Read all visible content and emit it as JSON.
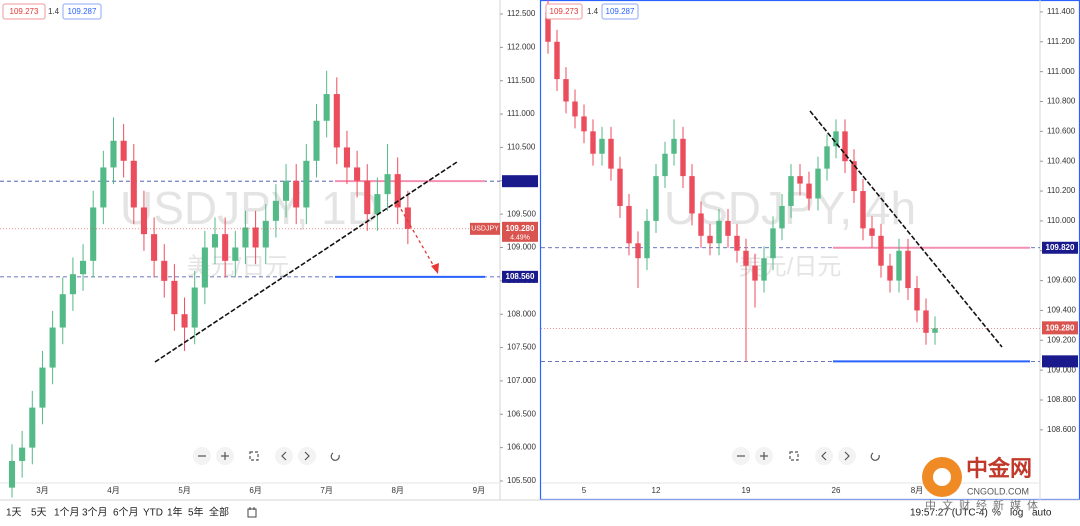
{
  "chart_data": [
    {
      "type": "candlestick",
      "title": "USDJPY, 1D",
      "subtitle": "美元/日元",
      "bid": "109.273",
      "spread": "1.4",
      "ask": "109.287",
      "categories": [
        null,
        null,
        null,
        "3月",
        null,
        null,
        null,
        null,
        null,
        null,
        "4月",
        null,
        null,
        null,
        null,
        null,
        null,
        "5月",
        null,
        null,
        null,
        null,
        null,
        null,
        "6月",
        null,
        null,
        null,
        null,
        null,
        null,
        "7月",
        null,
        null,
        null,
        null,
        null,
        null,
        "8月",
        null,
        null,
        null,
        null,
        null,
        null,
        null,
        "9月"
      ],
      "open": [
        105.4,
        105.8,
        106.0,
        106.6,
        107.2,
        107.8,
        108.3,
        108.6,
        108.8,
        109.6,
        110.2,
        110.6,
        110.3,
        109.6,
        109.2,
        108.8,
        108.5,
        108.0,
        107.8,
        108.4,
        109.0,
        109.2,
        108.8,
        109.0,
        109.3,
        109.0,
        109.4,
        109.7,
        110.0,
        109.6,
        110.3,
        110.9,
        111.3,
        110.5,
        110.2,
        110.0,
        109.5,
        109.8,
        110.1,
        109.6,
        null,
        null,
        null,
        null,
        null,
        null,
        null
      ],
      "high": [
        106.05,
        106.25,
        106.85,
        107.45,
        108.05,
        108.55,
        108.85,
        109.05,
        109.85,
        110.45,
        110.95,
        110.85,
        110.55,
        109.85,
        109.45,
        109.05,
        108.75,
        108.25,
        108.65,
        109.25,
        109.45,
        109.45,
        109.25,
        109.55,
        109.55,
        109.65,
        109.95,
        110.25,
        110.25,
        110.55,
        111.15,
        111.65,
        111.55,
        110.75,
        110.45,
        110.25,
        110.05,
        110.55,
        110.35,
        109.85,
        null,
        null,
        null,
        null,
        null,
        null,
        null
      ],
      "low": [
        105.25,
        105.55,
        105.75,
        106.35,
        106.95,
        107.55,
        108.05,
        108.35,
        108.55,
        109.35,
        109.95,
        110.05,
        109.35,
        108.95,
        108.55,
        108.25,
        107.75,
        107.45,
        107.55,
        108.15,
        108.75,
        108.55,
        108.55,
        108.75,
        108.75,
        108.75,
        109.15,
        109.45,
        109.35,
        109.35,
        110.05,
        110.65,
        110.25,
        109.95,
        109.75,
        109.25,
        109.25,
        109.55,
        109.35,
        109.05,
        null,
        null,
        null,
        null,
        null,
        null,
        null
      ],
      "close": [
        105.8,
        106.0,
        106.6,
        107.2,
        107.8,
        108.3,
        108.6,
        108.8,
        109.6,
        110.2,
        110.6,
        110.3,
        109.6,
        109.2,
        108.8,
        108.5,
        108.0,
        107.8,
        108.4,
        109.0,
        109.2,
        108.8,
        109.0,
        109.3,
        109.0,
        109.4,
        109.7,
        110.0,
        109.6,
        110.3,
        110.9,
        111.3,
        110.5,
        110.2,
        110.0,
        109.5,
        109.8,
        110.1,
        109.6,
        109.28,
        null,
        null,
        null,
        null,
        null,
        null,
        null
      ],
      "up_color": "#53b987",
      "down_color": "#eb4d5c",
      "ylim": [
        105.215,
        112.71
      ],
      "yticks": [
        {
          "value": 105.5,
          "label": "105.500"
        },
        {
          "value": 106,
          "label": "106.000"
        },
        {
          "value": 106.5,
          "label": "106.500"
        },
        {
          "value": 107,
          "label": "107.000"
        },
        {
          "value": 107.5,
          "label": "107.500"
        },
        {
          "value": 108,
          "label": "108.000"
        },
        {
          "value": 108.5,
          "label": "108.500"
        },
        {
          "value": 109,
          "label": "109.000"
        },
        {
          "value": 109.5,
          "label": "109.500"
        },
        {
          "value": 110,
          "label": "110.000"
        },
        {
          "value": 110.5,
          "label": "110.500"
        },
        {
          "value": 111,
          "label": "111.000"
        },
        {
          "value": 111.5,
          "label": "111.500"
        },
        {
          "value": 112,
          "label": "112.000"
        },
        {
          "value": 112.5,
          "label": "112.500"
        }
      ],
      "grid": false,
      "price_tags": [
        {
          "value": 109.994,
          "color": "#1a1a8c"
        },
        {
          "value": 108.56,
          "label": "108.560",
          "color": "#1a1a8c"
        }
      ],
      "last_price": {
        "value": 109.28,
        "label": "109.280",
        "symbol": "USDJPY",
        "change": "4.49%",
        "color": "#d9534f"
      }
    },
    {
      "type": "candlestick",
      "title": "USDJPY, 4h",
      "subtitle": "美元/日元",
      "bid": "109.273",
      "spread": "1.4",
      "ask": "109.287",
      "categories": [
        null,
        null,
        null,
        null,
        "5",
        null,
        null,
        null,
        null,
        null,
        null,
        null,
        "12",
        null,
        null,
        null,
        null,
        null,
        null,
        null,
        null,
        null,
        "19",
        null,
        null,
        null,
        null,
        null,
        null,
        null,
        null,
        null,
        "26",
        null,
        null,
        null,
        null,
        null,
        null,
        null,
        null,
        "8月",
        null,
        null,
        null,
        null,
        null,
        null,
        null,
        null,
        null,
        null,
        null,
        null,
        null
      ],
      "open": [
        111.4,
        111.2,
        110.95,
        110.8,
        110.7,
        110.6,
        110.45,
        110.55,
        110.35,
        110.1,
        109.85,
        109.75,
        110.0,
        110.3,
        110.45,
        110.55,
        110.3,
        110.05,
        109.9,
        109.85,
        110.0,
        109.9,
        109.8,
        109.7,
        109.6,
        109.75,
        109.95,
        110.1,
        110.3,
        110.25,
        110.15,
        110.35,
        110.5,
        110.6,
        110.4,
        110.2,
        109.95,
        109.9,
        109.7,
        109.6,
        109.8,
        109.55,
        109.4,
        109.25,
        null,
        null,
        null,
        null,
        null,
        null,
        null,
        null,
        null,
        null,
        null
      ],
      "high": [
        111.48,
        111.28,
        111.03,
        110.88,
        110.78,
        110.68,
        110.63,
        110.63,
        110.43,
        110.18,
        109.93,
        110.08,
        110.38,
        110.53,
        110.68,
        110.63,
        110.38,
        110.13,
        109.98,
        110.08,
        110.08,
        109.98,
        109.88,
        109.78,
        109.83,
        110.03,
        110.18,
        110.38,
        110.38,
        110.33,
        110.43,
        110.58,
        110.68,
        110.68,
        110.48,
        110.28,
        110.03,
        109.98,
        109.78,
        109.88,
        109.88,
        109.63,
        109.48,
        109.36,
        null,
        null,
        null,
        null,
        null,
        null,
        null,
        null,
        null,
        null,
        null
      ],
      "low": [
        111.12,
        110.87,
        110.72,
        110.62,
        110.52,
        110.37,
        110.37,
        110.27,
        110.02,
        109.77,
        109.55,
        109.67,
        109.92,
        110.22,
        110.37,
        110.22,
        109.97,
        109.82,
        109.77,
        109.77,
        109.82,
        109.72,
        109.06,
        109.42,
        109.52,
        109.67,
        109.87,
        110.02,
        110.17,
        110.07,
        110.07,
        110.27,
        110.42,
        110.32,
        110.12,
        109.87,
        109.82,
        109.62,
        109.52,
        109.52,
        109.47,
        109.32,
        109.17,
        109.17,
        null,
        null,
        null,
        null,
        null,
        null,
        null,
        null,
        null,
        null,
        null
      ],
      "close": [
        111.2,
        110.95,
        110.8,
        110.7,
        110.6,
        110.45,
        110.55,
        110.35,
        110.1,
        109.85,
        109.75,
        110.0,
        110.3,
        110.45,
        110.55,
        110.3,
        110.05,
        109.9,
        109.85,
        110.0,
        109.9,
        109.8,
        109.7,
        109.6,
        109.75,
        109.95,
        110.1,
        110.3,
        110.25,
        110.15,
        110.35,
        110.5,
        110.6,
        110.4,
        110.2,
        109.95,
        109.9,
        109.7,
        109.6,
        109.8,
        109.55,
        109.4,
        109.25,
        109.28,
        null,
        null,
        null,
        null,
        null,
        null,
        null,
        null,
        null,
        null,
        null
      ],
      "up_color": "#53b987",
      "down_color": "#eb4d5c",
      "ylim": [
        108.13,
        111.48
      ],
      "yticks": [
        {
          "value": 108.6,
          "label": "108.600"
        },
        {
          "value": 108.8,
          "label": "108.800"
        },
        {
          "value": 109,
          "label": "109.000"
        },
        {
          "value": 109.2,
          "label": "109.200"
        },
        {
          "value": 109.4,
          "label": "109.400"
        },
        {
          "value": 109.6,
          "label": "109.600"
        },
        {
          "value": 109.8,
          "label": "109.800"
        },
        {
          "value": 110,
          "label": "110.000"
        },
        {
          "value": 110.2,
          "label": "110.200"
        },
        {
          "value": 110.4,
          "label": "110.400"
        },
        {
          "value": 110.6,
          "label": "110.600"
        },
        {
          "value": 110.8,
          "label": "110.800"
        },
        {
          "value": 111,
          "label": "111.000"
        },
        {
          "value": 111.2,
          "label": "111.200"
        },
        {
          "value": 111.4,
          "label": "111.400"
        }
      ],
      "grid": false,
      "price_tags": [
        {
          "value": 109.82,
          "label": "109.820",
          "color": "#1a1a8c"
        },
        {
          "value": 109.059,
          "color": "#1a1a8c"
        }
      ],
      "last_price": {
        "value": 109.28,
        "label": "109.280",
        "color": "#d9534f"
      }
    }
  ],
  "toolbar": {
    "ranges": [
      "1天",
      "5天",
      "1个月",
      "3个月",
      "6个月",
      "YTD",
      "1年",
      "5年",
      "全部"
    ],
    "time": "19:57:27 (UTC-4)",
    "options": [
      "%",
      "log",
      "auto"
    ]
  },
  "logo": {
    "name": "中金网",
    "domain": "CNGOLD.COM",
    "slogan": "中文财经新媒体"
  }
}
